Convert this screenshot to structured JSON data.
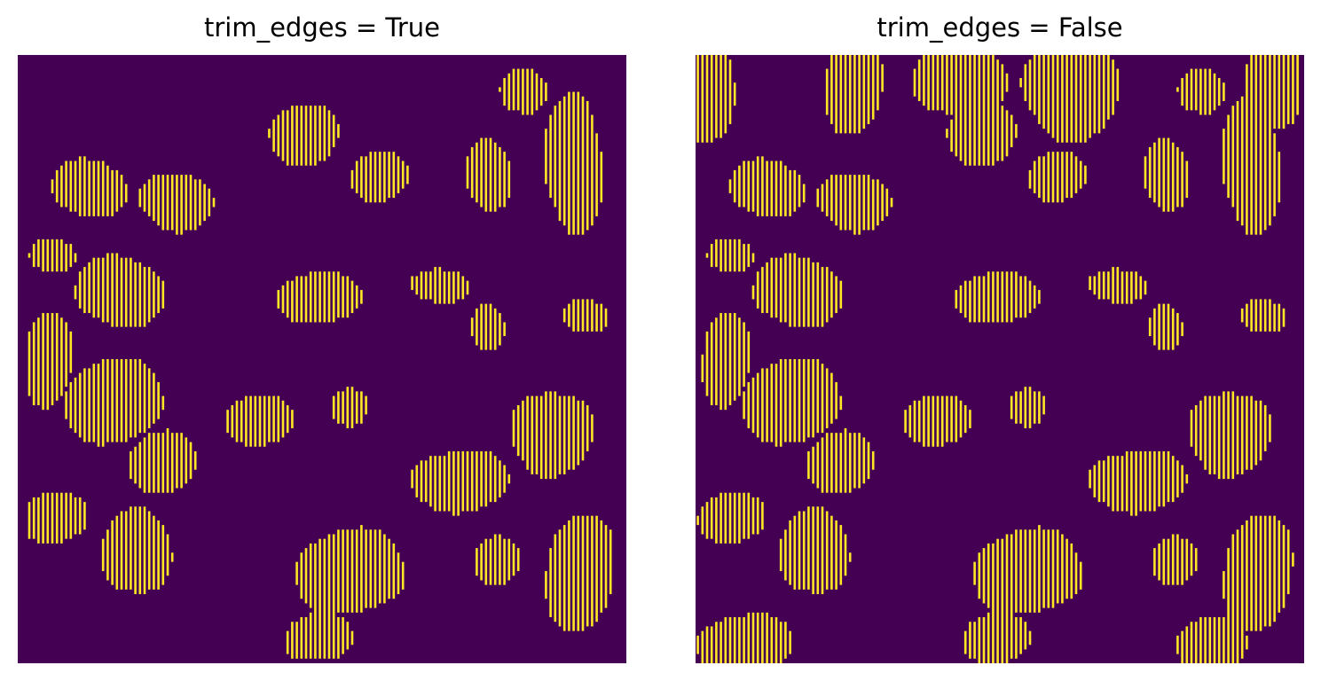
{
  "colors": {
    "background": "#440154",
    "stripe": "#fde725",
    "title": "#000000"
  },
  "chart_data": [
    {
      "type": "heatmap",
      "title": "trim_edges = True",
      "xlabel": "",
      "ylabel": "",
      "axes": "off",
      "grid": false,
      "colormap": "viridis",
      "value_range": [
        0,
        1
      ],
      "pattern": "binary mask of irregular blobs rendered as alternating vertical stripes; blobs touching the image border are trimmed to single-column stripes",
      "blobs": [
        {
          "cx": 0.12,
          "cy": 0.22,
          "rx": 0.06,
          "ry": 0.05
        },
        {
          "cx": 0.26,
          "cy": 0.24,
          "rx": 0.06,
          "ry": 0.05
        },
        {
          "cx": 0.06,
          "cy": 0.33,
          "rx": 0.04,
          "ry": 0.03
        },
        {
          "cx": 0.17,
          "cy": 0.39,
          "rx": 0.07,
          "ry": 0.06
        },
        {
          "cx": 0.05,
          "cy": 0.5,
          "rx": 0.04,
          "ry": 0.08
        },
        {
          "cx": 0.16,
          "cy": 0.57,
          "rx": 0.09,
          "ry": 0.07
        },
        {
          "cx": 0.06,
          "cy": 0.76,
          "rx": 0.06,
          "ry": 0.04
        },
        {
          "cx": 0.24,
          "cy": 0.67,
          "rx": 0.06,
          "ry": 0.05
        },
        {
          "cx": 0.2,
          "cy": 0.82,
          "rx": 0.06,
          "ry": 0.07
        },
        {
          "cx": 0.47,
          "cy": 0.13,
          "rx": 0.06,
          "ry": 0.05
        },
        {
          "cx": 0.6,
          "cy": 0.2,
          "rx": 0.05,
          "ry": 0.04
        },
        {
          "cx": 0.5,
          "cy": 0.4,
          "rx": 0.08,
          "ry": 0.04
        },
        {
          "cx": 0.7,
          "cy": 0.38,
          "rx": 0.05,
          "ry": 0.03
        },
        {
          "cx": 0.78,
          "cy": 0.2,
          "rx": 0.04,
          "ry": 0.06
        },
        {
          "cx": 0.84,
          "cy": 0.06,
          "rx": 0.04,
          "ry": 0.04
        },
        {
          "cx": 0.92,
          "cy": 0.18,
          "rx": 0.05,
          "ry": 0.11
        },
        {
          "cx": 0.78,
          "cy": 0.45,
          "rx": 0.03,
          "ry": 0.04
        },
        {
          "cx": 0.94,
          "cy": 0.43,
          "rx": 0.04,
          "ry": 0.03
        },
        {
          "cx": 0.4,
          "cy": 0.6,
          "rx": 0.06,
          "ry": 0.04
        },
        {
          "cx": 0.55,
          "cy": 0.58,
          "rx": 0.03,
          "ry": 0.03
        },
        {
          "cx": 0.73,
          "cy": 0.7,
          "rx": 0.09,
          "ry": 0.05
        },
        {
          "cx": 0.55,
          "cy": 0.85,
          "rx": 0.1,
          "ry": 0.07
        },
        {
          "cx": 0.88,
          "cy": 0.62,
          "rx": 0.07,
          "ry": 0.07
        },
        {
          "cx": 0.93,
          "cy": 0.85,
          "rx": 0.06,
          "ry": 0.1
        },
        {
          "cx": 0.5,
          "cy": 0.96,
          "rx": 0.06,
          "ry": 0.04
        },
        {
          "cx": 0.79,
          "cy": 0.83,
          "rx": 0.04,
          "ry": 0.04
        }
      ]
    },
    {
      "type": "heatmap",
      "title": "trim_edges = False",
      "xlabel": "",
      "ylabel": "",
      "axes": "off",
      "grid": false,
      "colormap": "viridis",
      "value_range": [
        0,
        1
      ],
      "pattern": "same binary mask of irregular blobs rendered as alternating vertical stripes; border-touching blobs kept with full stripe width",
      "blobs": [
        {
          "cx": 0.02,
          "cy": 0.07,
          "rx": 0.05,
          "ry": 0.08
        },
        {
          "cx": 0.12,
          "cy": 0.22,
          "rx": 0.06,
          "ry": 0.05
        },
        {
          "cx": 0.26,
          "cy": 0.24,
          "rx": 0.06,
          "ry": 0.05
        },
        {
          "cx": 0.06,
          "cy": 0.33,
          "rx": 0.04,
          "ry": 0.03
        },
        {
          "cx": 0.17,
          "cy": 0.39,
          "rx": 0.07,
          "ry": 0.06
        },
        {
          "cx": 0.05,
          "cy": 0.5,
          "rx": 0.04,
          "ry": 0.08
        },
        {
          "cx": 0.16,
          "cy": 0.57,
          "rx": 0.09,
          "ry": 0.07
        },
        {
          "cx": 0.06,
          "cy": 0.76,
          "rx": 0.06,
          "ry": 0.04
        },
        {
          "cx": 0.24,
          "cy": 0.67,
          "rx": 0.06,
          "ry": 0.05
        },
        {
          "cx": 0.2,
          "cy": 0.82,
          "rx": 0.06,
          "ry": 0.07
        },
        {
          "cx": 0.26,
          "cy": 0.05,
          "rx": 0.05,
          "ry": 0.08
        },
        {
          "cx": 0.47,
          "cy": 0.13,
          "rx": 0.06,
          "ry": 0.05
        },
        {
          "cx": 0.44,
          "cy": 0.04,
          "rx": 0.08,
          "ry": 0.06
        },
        {
          "cx": 0.62,
          "cy": 0.06,
          "rx": 0.08,
          "ry": 0.08
        },
        {
          "cx": 0.6,
          "cy": 0.2,
          "rx": 0.05,
          "ry": 0.04
        },
        {
          "cx": 0.5,
          "cy": 0.4,
          "rx": 0.08,
          "ry": 0.04
        },
        {
          "cx": 0.7,
          "cy": 0.38,
          "rx": 0.05,
          "ry": 0.03
        },
        {
          "cx": 0.78,
          "cy": 0.2,
          "rx": 0.04,
          "ry": 0.06
        },
        {
          "cx": 0.84,
          "cy": 0.06,
          "rx": 0.04,
          "ry": 0.04
        },
        {
          "cx": 0.92,
          "cy": 0.18,
          "rx": 0.05,
          "ry": 0.11
        },
        {
          "cx": 0.96,
          "cy": 0.05,
          "rx": 0.05,
          "ry": 0.08
        },
        {
          "cx": 0.78,
          "cy": 0.45,
          "rx": 0.03,
          "ry": 0.04
        },
        {
          "cx": 0.94,
          "cy": 0.43,
          "rx": 0.04,
          "ry": 0.03
        },
        {
          "cx": 0.4,
          "cy": 0.6,
          "rx": 0.06,
          "ry": 0.04
        },
        {
          "cx": 0.55,
          "cy": 0.58,
          "rx": 0.03,
          "ry": 0.03
        },
        {
          "cx": 0.73,
          "cy": 0.7,
          "rx": 0.09,
          "ry": 0.05
        },
        {
          "cx": 0.55,
          "cy": 0.85,
          "rx": 0.1,
          "ry": 0.07
        },
        {
          "cx": 0.88,
          "cy": 0.62,
          "rx": 0.07,
          "ry": 0.07
        },
        {
          "cx": 0.93,
          "cy": 0.85,
          "rx": 0.06,
          "ry": 0.1
        },
        {
          "cx": 0.5,
          "cy": 0.96,
          "rx": 0.06,
          "ry": 0.04
        },
        {
          "cx": 0.79,
          "cy": 0.83,
          "rx": 0.04,
          "ry": 0.04
        },
        {
          "cx": 0.08,
          "cy": 0.97,
          "rx": 0.09,
          "ry": 0.05
        },
        {
          "cx": 0.85,
          "cy": 0.97,
          "rx": 0.06,
          "ry": 0.05
        }
      ]
    }
  ]
}
